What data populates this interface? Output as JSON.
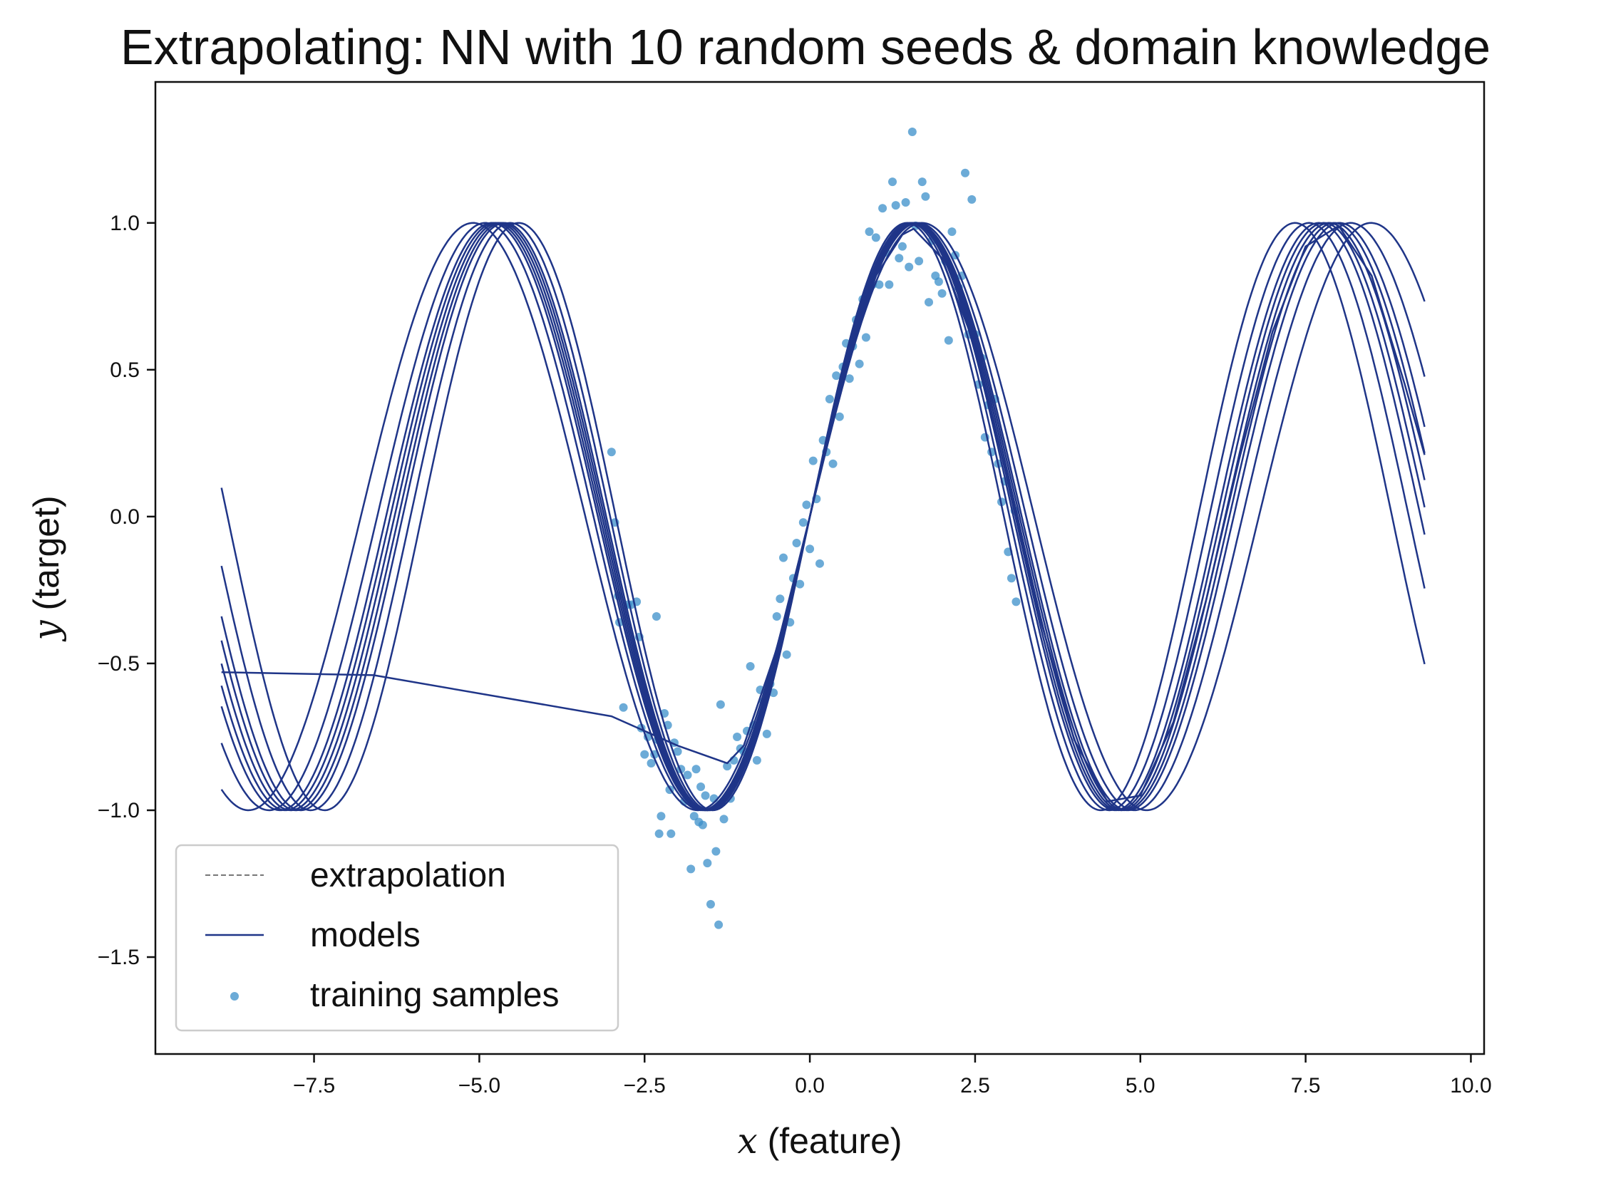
{
  "chart_data": {
    "type": "line",
    "title": "Extrapolating: NN with 10 random seeds & domain knowledge",
    "xlabel_var": "x",
    "xlabel_rest": " (feature)",
    "ylabel_var": "y",
    "ylabel_rest": " (target)",
    "xlim": [
      -9.9,
      10.2
    ],
    "ylim": [
      -1.83,
      1.48
    ],
    "x_range": [
      -8.9,
      9.3
    ],
    "xticks": [
      -7.5,
      -5.0,
      -2.5,
      0.0,
      2.5,
      5.0,
      7.5,
      10.0
    ],
    "xtick_labels": [
      "−7.5",
      "−5.0",
      "−2.5",
      "0.0",
      "2.5",
      "5.0",
      "7.5",
      "10.0"
    ],
    "yticks": [
      1.0,
      0.5,
      0.0,
      -0.5,
      -1.0,
      -1.5
    ],
    "ytick_labels": [
      "1.0",
      "0.5",
      "0.0",
      "−0.5",
      "−1.0",
      "−1.5"
    ],
    "grid": false,
    "legend_placement": "lower-left",
    "legend": [
      {
        "label": "extrapolation",
        "style": "dashed-line"
      },
      {
        "label": "models",
        "style": "line"
      },
      {
        "label": "training samples",
        "style": "marker"
      }
    ],
    "colors": {
      "extrapolation": "#777777",
      "models": "#1f3588",
      "samples": "#3b8fc9"
    },
    "extrapolation": {
      "function": "sin(x)"
    },
    "model_frequencies": [
      0.925,
      0.96,
      0.98,
      0.99,
      1.0,
      1.01,
      1.02,
      1.04,
      1.07
    ],
    "outlier_model": {
      "x": [
        -8.9,
        -6.6,
        -3.0,
        -2.5,
        -2.0,
        -1.25,
        -1.0,
        -0.5,
        0.0,
        0.5,
        1.0,
        1.4,
        1.57,
        2.0,
        2.5,
        3.0,
        3.5,
        4.0,
        4.5,
        5.0,
        5.5,
        6.0,
        6.5,
        7.0,
        7.5,
        8.0,
        8.5,
        9.0,
        9.3
      ],
      "y": [
        -0.53,
        -0.54,
        -0.68,
        -0.73,
        -0.78,
        -0.84,
        -0.78,
        -0.45,
        0.0,
        0.47,
        0.82,
        0.96,
        0.98,
        0.88,
        0.58,
        0.12,
        -0.36,
        -0.76,
        -0.97,
        -0.95,
        -0.7,
        -0.28,
        0.2,
        0.63,
        0.92,
        0.99,
        0.82,
        0.45,
        0.21
      ]
    },
    "samples": [
      [
        -3.0,
        0.22
      ],
      [
        -2.95,
        -0.02
      ],
      [
        -2.9,
        -0.27
      ],
      [
        -2.88,
        -0.36
      ],
      [
        -2.82,
        -0.65
      ],
      [
        -2.75,
        -0.3
      ],
      [
        -2.7,
        -0.3
      ],
      [
        -2.62,
        -0.29
      ],
      [
        -2.58,
        -0.41
      ],
      [
        -2.55,
        -0.72
      ],
      [
        -2.5,
        -0.81
      ],
      [
        -2.45,
        -0.75
      ],
      [
        -2.4,
        -0.84
      ],
      [
        -2.35,
        -0.81
      ],
      [
        -2.32,
        -0.34
      ],
      [
        -2.3,
        -0.76
      ],
      [
        -2.28,
        -1.08
      ],
      [
        -2.25,
        -1.02
      ],
      [
        -2.2,
        -0.67
      ],
      [
        -2.15,
        -0.71
      ],
      [
        -2.12,
        -0.93
      ],
      [
        -2.1,
        -1.08
      ],
      [
        -2.05,
        -0.77
      ],
      [
        -2.0,
        -0.8
      ],
      [
        -1.95,
        -0.86
      ],
      [
        -1.9,
        -0.97
      ],
      [
        -1.85,
        -0.88
      ],
      [
        -1.8,
        -1.2
      ],
      [
        -1.75,
        -1.02
      ],
      [
        -1.72,
        -0.86
      ],
      [
        -1.68,
        -1.04
      ],
      [
        -1.65,
        -0.92
      ],
      [
        -1.62,
        -1.05
      ],
      [
        -1.58,
        -0.95
      ],
      [
        -1.55,
        -1.18
      ],
      [
        -1.5,
        -1.32
      ],
      [
        -1.45,
        -0.96
      ],
      [
        -1.42,
        -1.14
      ],
      [
        -1.38,
        -1.39
      ],
      [
        -1.35,
        -0.64
      ],
      [
        -1.3,
        -1.03
      ],
      [
        -1.25,
        -0.85
      ],
      [
        -1.2,
        -0.96
      ],
      [
        -1.15,
        -0.83
      ],
      [
        -1.1,
        -0.75
      ],
      [
        -1.05,
        -0.79
      ],
      [
        -1.0,
        -0.8
      ],
      [
        -0.95,
        -0.73
      ],
      [
        -0.9,
        -0.51
      ],
      [
        -0.85,
        -0.71
      ],
      [
        -0.8,
        -0.83
      ],
      [
        -0.75,
        -0.59
      ],
      [
        -0.7,
        -0.63
      ],
      [
        -0.65,
        -0.74
      ],
      [
        -0.6,
        -0.57
      ],
      [
        -0.55,
        -0.6
      ],
      [
        -0.5,
        -0.34
      ],
      [
        -0.45,
        -0.28
      ],
      [
        -0.4,
        -0.14
      ],
      [
        -0.35,
        -0.47
      ],
      [
        -0.3,
        -0.36
      ],
      [
        -0.25,
        -0.21
      ],
      [
        -0.2,
        -0.09
      ],
      [
        -0.15,
        -0.23
      ],
      [
        -0.1,
        -0.02
      ],
      [
        -0.05,
        0.04
      ],
      [
        0.0,
        -0.11
      ],
      [
        0.05,
        0.19
      ],
      [
        0.1,
        0.06
      ],
      [
        0.15,
        -0.16
      ],
      [
        0.2,
        0.26
      ],
      [
        0.25,
        0.22
      ],
      [
        0.3,
        0.4
      ],
      [
        0.35,
        0.18
      ],
      [
        0.4,
        0.48
      ],
      [
        0.45,
        0.34
      ],
      [
        0.5,
        0.51
      ],
      [
        0.55,
        0.59
      ],
      [
        0.6,
        0.47
      ],
      [
        0.65,
        0.58
      ],
      [
        0.7,
        0.67
      ],
      [
        0.75,
        0.52
      ],
      [
        0.8,
        0.74
      ],
      [
        0.85,
        0.61
      ],
      [
        0.9,
        0.97
      ],
      [
        0.95,
        0.79
      ],
      [
        1.0,
        0.95
      ],
      [
        1.05,
        0.79
      ],
      [
        1.1,
        1.05
      ],
      [
        1.15,
        0.9
      ],
      [
        1.2,
        0.79
      ],
      [
        1.25,
        1.14
      ],
      [
        1.3,
        1.06
      ],
      [
        1.35,
        0.88
      ],
      [
        1.4,
        0.92
      ],
      [
        1.45,
        1.07
      ],
      [
        1.5,
        0.85
      ],
      [
        1.55,
        1.31
      ],
      [
        1.6,
        0.99
      ],
      [
        1.65,
        0.87
      ],
      [
        1.7,
        1.14
      ],
      [
        1.75,
        1.09
      ],
      [
        1.8,
        0.73
      ],
      [
        1.85,
        0.94
      ],
      [
        1.9,
        0.82
      ],
      [
        1.95,
        0.8
      ],
      [
        2.0,
        0.76
      ],
      [
        2.05,
        0.87
      ],
      [
        2.1,
        0.6
      ],
      [
        2.15,
        0.97
      ],
      [
        2.2,
        0.89
      ],
      [
        2.25,
        0.78
      ],
      [
        2.3,
        0.82
      ],
      [
        2.35,
        1.17
      ],
      [
        2.4,
        0.62
      ],
      [
        2.45,
        1.08
      ],
      [
        2.5,
        0.62
      ],
      [
        2.55,
        0.45
      ],
      [
        2.6,
        0.54
      ],
      [
        2.65,
        0.27
      ],
      [
        2.7,
        0.38
      ],
      [
        2.75,
        0.22
      ],
      [
        2.8,
        0.4
      ],
      [
        2.85,
        0.18
      ],
      [
        2.9,
        0.05
      ],
      [
        2.95,
        0.12
      ],
      [
        3.0,
        -0.12
      ],
      [
        3.05,
        -0.21
      ],
      [
        3.1,
        0.02
      ],
      [
        3.12,
        -0.29
      ]
    ]
  }
}
